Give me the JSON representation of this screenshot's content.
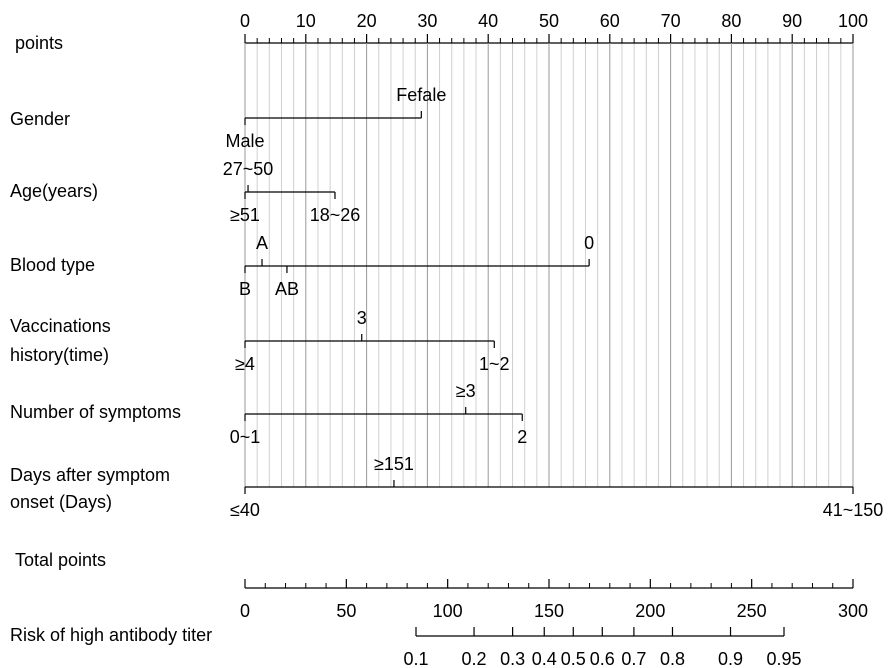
{
  "chart_data": {
    "type": "nomogram",
    "grid": true,
    "points_axis": {
      "label": "points",
      "xlim": [
        0,
        100
      ],
      "xticks": [
        0,
        10,
        20,
        30,
        40,
        50,
        60,
        70,
        80,
        90,
        100
      ]
    },
    "variables": [
      {
        "name": [
          "Gender"
        ],
        "levels": [
          {
            "label": "Male",
            "points": 0,
            "side": "below"
          },
          {
            "label": "Fefale",
            "points": 29,
            "side": "above"
          }
        ]
      },
      {
        "name": [
          "Age(years)"
        ],
        "levels": [
          {
            "label": "≥51",
            "points": 0,
            "side": "below"
          },
          {
            "label": "27~50",
            "points": 0.5,
            "side": "above"
          },
          {
            "label": "18~26",
            "points": 14.8,
            "side": "below"
          }
        ]
      },
      {
        "name": [
          "Blood type"
        ],
        "levels": [
          {
            "label": "B",
            "points": 0,
            "side": "below"
          },
          {
            "label": "A",
            "points": 2.8,
            "side": "above"
          },
          {
            "label": "AB",
            "points": 6.9,
            "side": "below"
          },
          {
            "label": "0",
            "points": 56.6,
            "side": "above"
          }
        ]
      },
      {
        "name": [
          "Vaccinations",
          "history(time)"
        ],
        "levels": [
          {
            "label": "≥4",
            "points": 0,
            "side": "below"
          },
          {
            "label": "3",
            "points": 19.2,
            "side": "above"
          },
          {
            "label": "1~2",
            "points": 41,
            "side": "below"
          }
        ]
      },
      {
        "name": [
          "Number of symptoms"
        ],
        "levels": [
          {
            "label": "0~1",
            "points": 0,
            "side": "below"
          },
          {
            "label": "≥3",
            "points": 36.3,
            "side": "above"
          },
          {
            "label": "2",
            "points": 45.6,
            "side": "below"
          }
        ]
      },
      {
        "name": [
          "Days after symptom",
          "onset (Days)"
        ],
        "levels": [
          {
            "label": "≤40",
            "points": 0,
            "side": "below"
          },
          {
            "label": "≥151",
            "points": 24.5,
            "side": "above"
          },
          {
            "label": "41~150",
            "points": 100,
            "side": "below"
          }
        ]
      }
    ],
    "total_points_axis": {
      "label": "Total points",
      "xlim": [
        0,
        300
      ],
      "xticks": [
        0,
        50,
        100,
        150,
        200,
        250,
        300
      ]
    },
    "risk_axis": {
      "label": "Risk of high antibody titer",
      "scale": "logit",
      "xlim": [
        0.1,
        0.95
      ],
      "xticks": [
        0.1,
        0.2,
        0.3,
        0.4,
        0.5,
        0.6,
        0.7,
        0.8,
        0.9,
        0.95
      ]
    }
  }
}
